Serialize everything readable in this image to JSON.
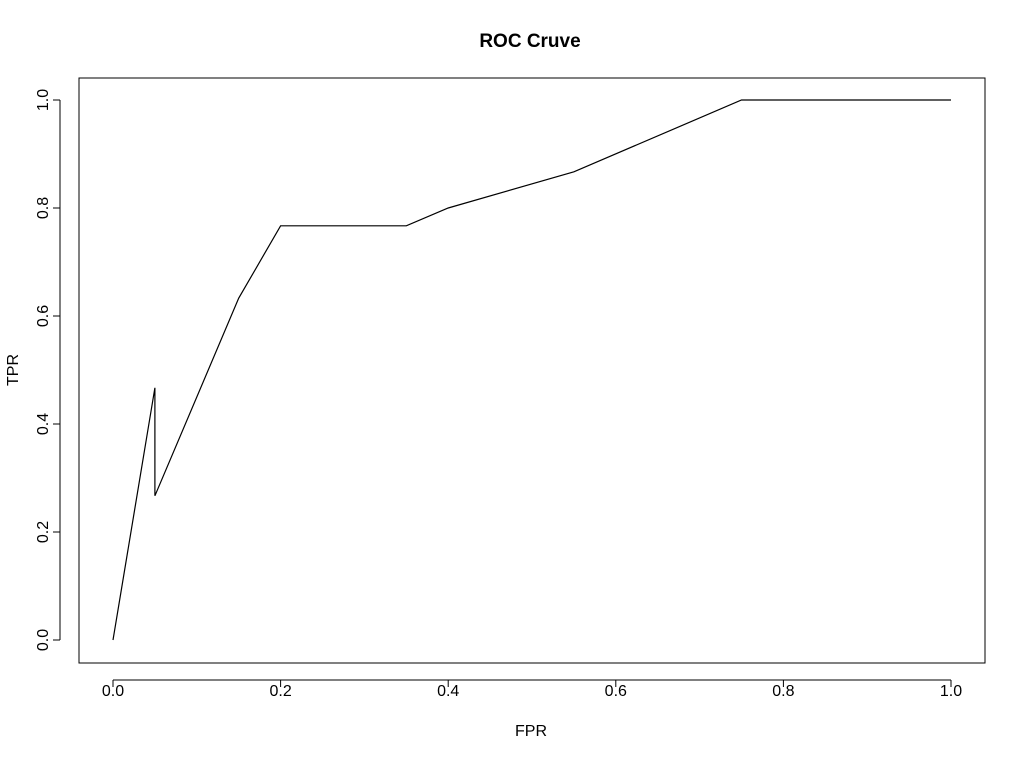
{
  "chart_data": {
    "type": "line",
    "title": "ROC Cruve",
    "xlabel": "FPR",
    "ylabel": "TPR",
    "xlim": [
      0,
      1
    ],
    "ylim": [
      0,
      1
    ],
    "grid": false,
    "legend": "none",
    "x_ticks": [
      0,
      0.2,
      0.4,
      0.6,
      0.8,
      1
    ],
    "x_tick_labels": [
      "0.0",
      "0.2",
      "0.4",
      "0.6",
      "0.8",
      "1.0"
    ],
    "y_ticks": [
      0,
      0.2,
      0.4,
      0.6,
      0.8,
      1
    ],
    "y_tick_labels": [
      "0.0",
      "0.2",
      "0.4",
      "0.6",
      "0.8",
      "1.0"
    ],
    "line_color": "#000000",
    "series": [
      {
        "x": [
          0,
          0.05,
          0.05,
          0.15,
          0.2,
          0.35,
          0.4,
          0.55,
          0.75,
          1.0
        ],
        "y": [
          0,
          0.467,
          0.267,
          0.633,
          0.767,
          0.767,
          0.8,
          0.867,
          1.0,
          1.0
        ]
      }
    ]
  }
}
